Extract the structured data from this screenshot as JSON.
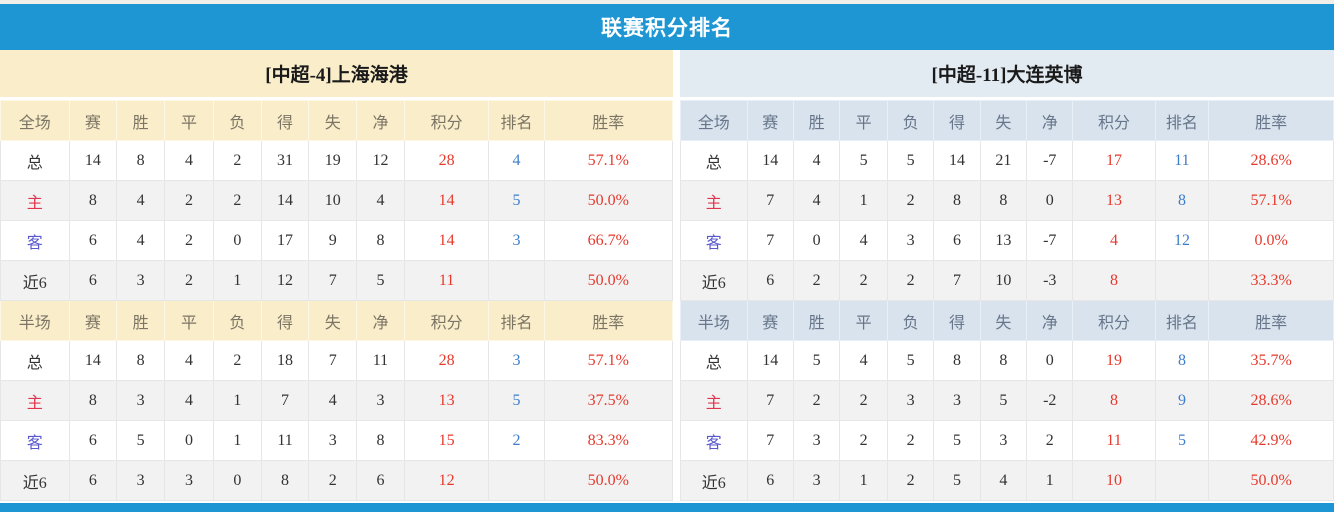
{
  "page_title": "联赛积分排名",
  "columns": [
    "赛",
    "胜",
    "平",
    "负",
    "得",
    "失",
    "净",
    "积分",
    "排名",
    "胜率"
  ],
  "colors": {
    "accent_blue": "#1E96D3",
    "cream_panel": "#FAEECA",
    "blue_panel_title": "#E3EBF2",
    "blue_panel_header": "#D9E3EE",
    "points_red": "#E6392D",
    "rank_blue": "#3E7DCB",
    "home_label_red": "#E0344F",
    "away_label_blue": "#5B57CE"
  },
  "tables": [
    {
      "team_title": "[中超-4]上海海港",
      "theme": "cream",
      "sections": [
        {
          "scope_label": "全场",
          "rows": [
            {
              "label": "总",
              "type": "total",
              "stats": [
                "14",
                "8",
                "4",
                "2",
                "31",
                "19",
                "12"
              ],
              "points": "28",
              "rank": "4",
              "rate": "57.1%"
            },
            {
              "label": "主",
              "type": "home",
              "stats": [
                "8",
                "4",
                "2",
                "2",
                "14",
                "10",
                "4"
              ],
              "points": "14",
              "rank": "5",
              "rate": "50.0%"
            },
            {
              "label": "客",
              "type": "away",
              "stats": [
                "6",
                "4",
                "2",
                "0",
                "17",
                "9",
                "8"
              ],
              "points": "14",
              "rank": "3",
              "rate": "66.7%"
            },
            {
              "label": "近6",
              "type": "recent",
              "stats": [
                "6",
                "3",
                "2",
                "1",
                "12",
                "7",
                "5"
              ],
              "points": "11",
              "rank": "",
              "rate": "50.0%"
            }
          ]
        },
        {
          "scope_label": "半场",
          "rows": [
            {
              "label": "总",
              "type": "total",
              "stats": [
                "14",
                "8",
                "4",
                "2",
                "18",
                "7",
                "11"
              ],
              "points": "28",
              "rank": "3",
              "rate": "57.1%"
            },
            {
              "label": "主",
              "type": "home",
              "stats": [
                "8",
                "3",
                "4",
                "1",
                "7",
                "4",
                "3"
              ],
              "points": "13",
              "rank": "5",
              "rate": "37.5%"
            },
            {
              "label": "客",
              "type": "away",
              "stats": [
                "6",
                "5",
                "0",
                "1",
                "11",
                "3",
                "8"
              ],
              "points": "15",
              "rank": "2",
              "rate": "83.3%"
            },
            {
              "label": "近6",
              "type": "recent",
              "stats": [
                "6",
                "3",
                "3",
                "0",
                "8",
                "2",
                "6"
              ],
              "points": "12",
              "rank": "",
              "rate": "50.0%"
            }
          ]
        }
      ]
    },
    {
      "team_title": "[中超-11]大连英博",
      "theme": "blue",
      "sections": [
        {
          "scope_label": "全场",
          "rows": [
            {
              "label": "总",
              "type": "total",
              "stats": [
                "14",
                "4",
                "5",
                "5",
                "14",
                "21",
                "-7"
              ],
              "points": "17",
              "rank": "11",
              "rate": "28.6%"
            },
            {
              "label": "主",
              "type": "home",
              "stats": [
                "7",
                "4",
                "1",
                "2",
                "8",
                "8",
                "0"
              ],
              "points": "13",
              "rank": "8",
              "rate": "57.1%"
            },
            {
              "label": "客",
              "type": "away",
              "stats": [
                "7",
                "0",
                "4",
                "3",
                "6",
                "13",
                "-7"
              ],
              "points": "4",
              "rank": "12",
              "rate": "0.0%"
            },
            {
              "label": "近6",
              "type": "recent",
              "stats": [
                "6",
                "2",
                "2",
                "2",
                "7",
                "10",
                "-3"
              ],
              "points": "8",
              "rank": "",
              "rate": "33.3%"
            }
          ]
        },
        {
          "scope_label": "半场",
          "rows": [
            {
              "label": "总",
              "type": "total",
              "stats": [
                "14",
                "5",
                "4",
                "5",
                "8",
                "8",
                "0"
              ],
              "points": "19",
              "rank": "8",
              "rate": "35.7%"
            },
            {
              "label": "主",
              "type": "home",
              "stats": [
                "7",
                "2",
                "2",
                "3",
                "3",
                "5",
                "-2"
              ],
              "points": "8",
              "rank": "9",
              "rate": "28.6%"
            },
            {
              "label": "客",
              "type": "away",
              "stats": [
                "7",
                "3",
                "2",
                "2",
                "5",
                "3",
                "2"
              ],
              "points": "11",
              "rank": "5",
              "rate": "42.9%"
            },
            {
              "label": "近6",
              "type": "recent",
              "stats": [
                "6",
                "3",
                "1",
                "2",
                "5",
                "4",
                "1"
              ],
              "points": "10",
              "rank": "",
              "rate": "50.0%"
            }
          ]
        }
      ]
    }
  ]
}
